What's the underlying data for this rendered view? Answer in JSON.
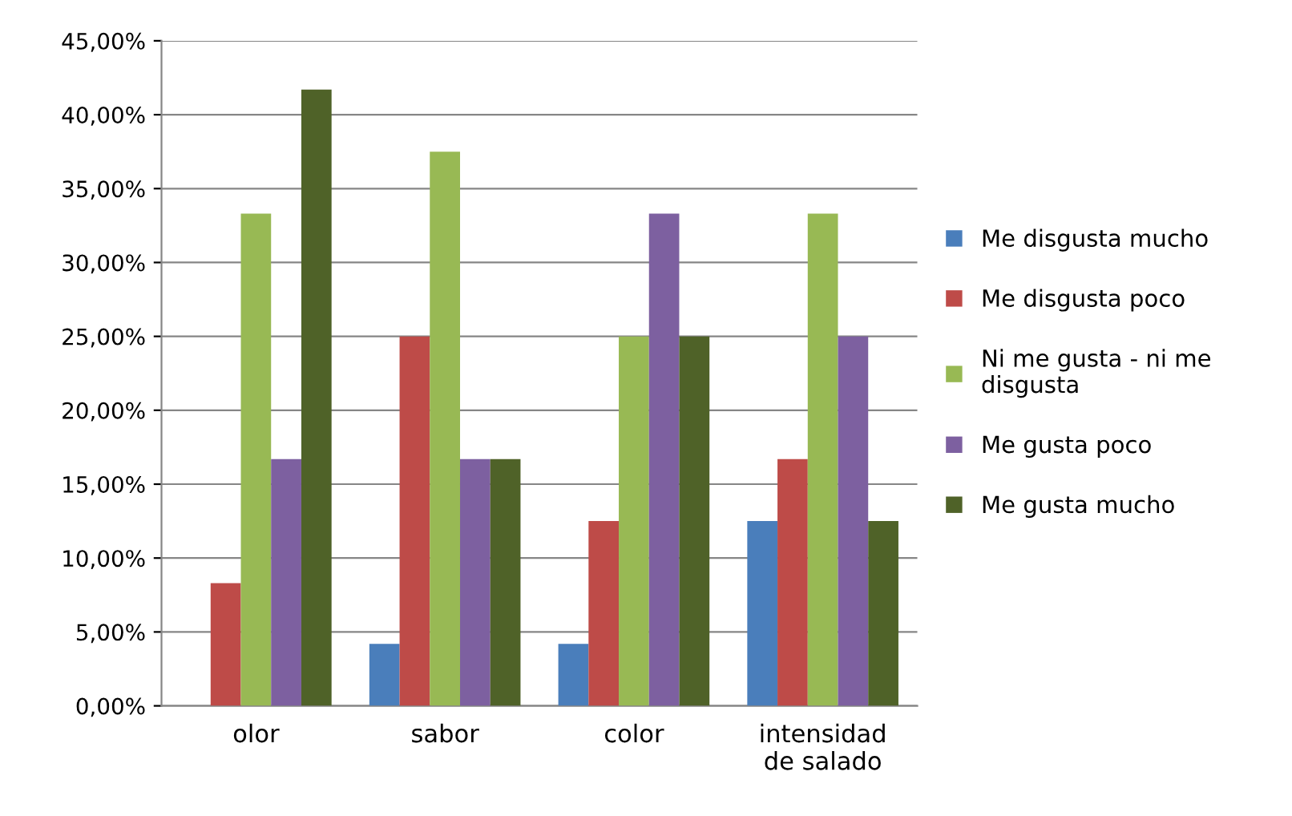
{
  "chart_data": {
    "type": "bar",
    "categories": [
      "olor",
      "sabor",
      "color",
      "intensidad\nde salado"
    ],
    "series": [
      {
        "name": "Me disgusta mucho",
        "color": "#4a7ebb",
        "values": [
          0,
          4.2,
          4.2,
          12.5
        ]
      },
      {
        "name": "Me disgusta poco",
        "color": "#be4b48",
        "values": [
          8.3,
          25,
          12.5,
          16.7
        ]
      },
      {
        "name": "Ni me gusta - ni me\ndisgusta",
        "color": "#98b954",
        "values": [
          33.3,
          37.5,
          25,
          33.3
        ]
      },
      {
        "name": "Me gusta poco",
        "color": "#7d60a0",
        "values": [
          16.7,
          16.7,
          33.3,
          25
        ]
      },
      {
        "name": "Me gusta mucho",
        "color": "#4f6228",
        "values": [
          41.7,
          16.7,
          25,
          12.5
        ]
      }
    ],
    "ylim": [
      0,
      45
    ],
    "yticks": [
      {
        "value": 0,
        "label": "0,00%"
      },
      {
        "value": 5,
        "label": "5,00%"
      },
      {
        "value": 10,
        "label": "10,00%"
      },
      {
        "value": 15,
        "label": "15,00%"
      },
      {
        "value": 20,
        "label": "20,00%"
      },
      {
        "value": 25,
        "label": "25,00%"
      },
      {
        "value": 30,
        "label": "30,00%"
      },
      {
        "value": 35,
        "label": "35,00%"
      },
      {
        "value": 40,
        "label": "40,00%"
      },
      {
        "value": 45,
        "label": "45,00%"
      }
    ],
    "grid": "y",
    "legend": "right"
  }
}
